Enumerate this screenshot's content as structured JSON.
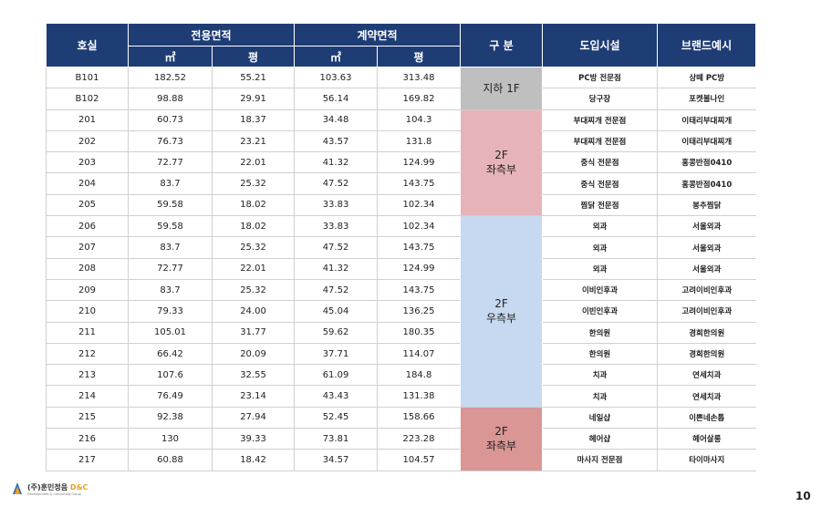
{
  "header": {
    "room": "호실",
    "exclusive": "전용면적",
    "contract": "계약면적",
    "section": "구 분",
    "facility": "도입시설",
    "brand": "브랜드예시",
    "units": [
      "㎡",
      "평",
      "㎡",
      "평"
    ]
  },
  "sections": [
    {
      "label": [
        "지하 1F"
      ],
      "color": "#bfbfbf",
      "rows": [
        [
          "B101",
          "182.52",
          "55.21",
          "103.63",
          "313.48",
          "PC방 전문점",
          "상떼 PC방"
        ],
        [
          "B102",
          "98.88",
          "29.91",
          "56.14",
          "169.82",
          "당구장",
          "포켓볼나인"
        ]
      ]
    },
    {
      "label": [
        "2F",
        "좌측부"
      ],
      "color": "#e6b4b8",
      "rows": [
        [
          "201",
          "60.73",
          "18.37",
          "34.48",
          "104.3",
          "부대찌개 전문점",
          "이태리부대찌개"
        ],
        [
          "202",
          "76.73",
          "23.21",
          "43.57",
          "131.8",
          "부대찌개 전문점",
          "이태리부대찌개"
        ],
        [
          "203",
          "72.77",
          "22.01",
          "41.32",
          "124.99",
          "중식 전문점",
          "홍콩반점0410"
        ],
        [
          "204",
          "83.7",
          "25.32",
          "47.52",
          "143.75",
          "중식 전문점",
          "홍콩반점0410"
        ],
        [
          "205",
          "59.58",
          "18.02",
          "33.83",
          "102.34",
          "찜닭 전문점",
          "봉추찜닭"
        ]
      ]
    },
    {
      "label": [
        "2F",
        "우측부"
      ],
      "color": "#c6d9f1",
      "rows": [
        [
          "206",
          "59.58",
          "18.02",
          "33.83",
          "102.34",
          "외과",
          "서울외과"
        ],
        [
          "207",
          "83.7",
          "25.32",
          "47.52",
          "143.75",
          "외과",
          "서울외과"
        ],
        [
          "208",
          "72.77",
          "22.01",
          "41.32",
          "124.99",
          "외과",
          "서울외과"
        ],
        [
          "209",
          "83.7",
          "25.32",
          "47.52",
          "143.75",
          "이비인후과",
          "고려이비인후과"
        ],
        [
          "210",
          "79.33",
          "24.00",
          "45.04",
          "136.25",
          "이빈인후과",
          "고려이비인후과"
        ],
        [
          "211",
          "105.01",
          "31.77",
          "59.62",
          "180.35",
          "한의원",
          "경희한의원"
        ],
        [
          "212",
          "66.42",
          "20.09",
          "37.71",
          "114.07",
          "한의원",
          "경희한의원"
        ],
        [
          "213",
          "107.6",
          "32.55",
          "61.09",
          "184.8",
          "치과",
          "연세치과"
        ],
        [
          "214",
          "76.49",
          "23.14",
          "43.43",
          "131.38",
          "치과",
          "연세치과"
        ]
      ]
    },
    {
      "label": [
        "2F",
        "좌측부"
      ],
      "color": "#d99694",
      "rows": [
        [
          "215",
          "92.38",
          "27.94",
          "52.45",
          "158.66",
          "네일샵",
          "이쁜네손톱"
        ],
        [
          "216",
          "130",
          "39.33",
          "73.81",
          "223.28",
          "헤어샵",
          "헤어살롱"
        ],
        [
          "217",
          "60.88",
          "18.42",
          "34.57",
          "104.57",
          "마사지 전문점",
          "타이마사지"
        ]
      ]
    }
  ],
  "footer": {
    "company": "(주)훈민정음",
    "company_suffix": "D&C",
    "tagline": "Development & Consulting Group",
    "page": "10"
  }
}
